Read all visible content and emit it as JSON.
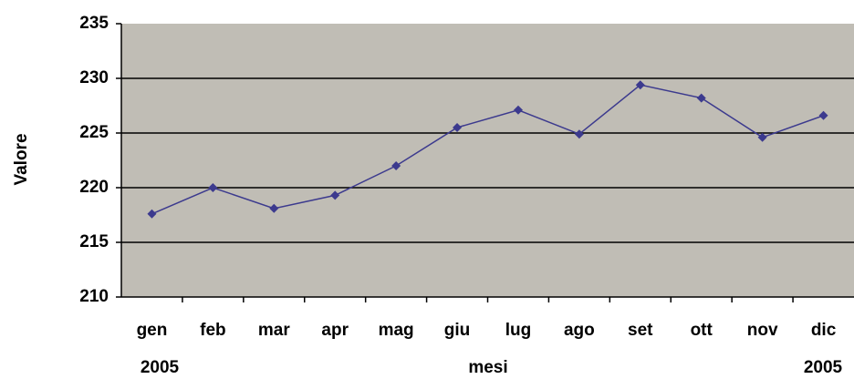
{
  "chart_data": {
    "type": "line",
    "y_label": "Valore",
    "x_label": "mesi",
    "annotations": [
      "2005",
      "2005"
    ],
    "categories": [
      "gen",
      "feb",
      "mar",
      "apr",
      "mag",
      "giu",
      "lug",
      "ago",
      "set",
      "ott",
      "nov",
      "dic"
    ],
    "series": [
      {
        "color": "#3c3a8e",
        "values": [
          217.6,
          220.0,
          218.1,
          219.3,
          222.0,
          225.5,
          227.1,
          224.9,
          229.4,
          228.2,
          224.6,
          226.6
        ]
      }
    ],
    "ylim": [
      210,
      235
    ],
    "yticks": [
      210,
      215,
      220,
      225,
      230,
      235
    ],
    "grid": true,
    "plot_background": "#c0bdb5"
  }
}
